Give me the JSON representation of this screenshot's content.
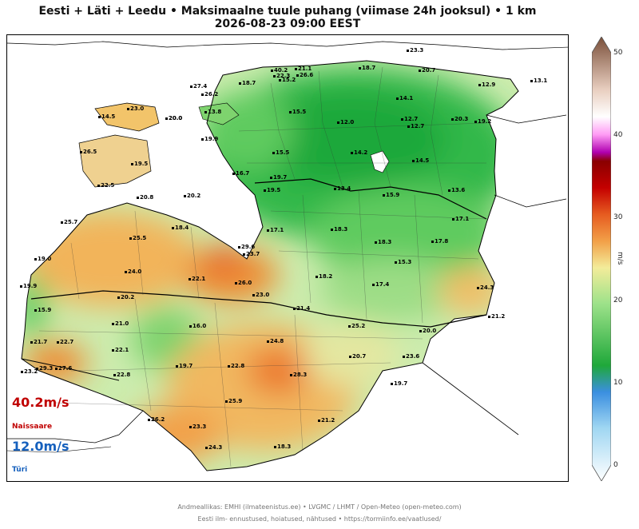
{
  "title": {
    "line1": "Eesti + Läti + Leedu  •  Maksimaalne tuule puhang (viimase 24h jooksul)  •  1 km",
    "line2": "2026-08-23  09:00 EEST"
  },
  "extremes": {
    "max_value": "40.2m/s",
    "max_station": "Naissaare",
    "max_color": "#c00000",
    "min_value": "12.0m/s",
    "min_station": "Türi",
    "min_color": "#1560bd"
  },
  "colorbar": {
    "unit": "m/s",
    "ticks": [
      "50",
      "40",
      "30",
      "20",
      "10",
      "0"
    ],
    "range": [
      0,
      50
    ]
  },
  "stations": [
    {
      "value": "40.2",
      "v": 40.2
    },
    {
      "value": "21.1",
      "v": 21.1
    },
    {
      "value": "18.7",
      "v": 18.7
    },
    {
      "value": "23.3",
      "v": 23.3
    },
    {
      "value": "22.3",
      "v": 22.3
    },
    {
      "value": "26.6",
      "v": 26.6
    },
    {
      "value": "18.7",
      "v": 18.7
    },
    {
      "value": "15.2",
      "v": 15.2
    },
    {
      "value": "20.7",
      "v": 20.7
    },
    {
      "value": "27.4",
      "v": 27.4
    },
    {
      "value": "12.9",
      "v": 12.9
    },
    {
      "value": "13.1",
      "v": 13.1
    },
    {
      "value": "26.2",
      "v": 26.2
    },
    {
      "value": "14.1",
      "v": 14.1
    },
    {
      "value": "23.0",
      "v": 23.0
    },
    {
      "value": "14.5",
      "v": 14.5
    },
    {
      "value": "20.0",
      "v": 20.0
    },
    {
      "value": "13.8",
      "v": 13.8
    },
    {
      "value": "15.5",
      "v": 15.5
    },
    {
      "value": "20.0",
      "v": 20.0
    },
    {
      "value": "12.0",
      "v": 12.0
    },
    {
      "value": "12.7",
      "v": 12.7
    },
    {
      "value": "12.7",
      "v": 12.7
    },
    {
      "value": "20.3",
      "v": 20.3
    },
    {
      "value": "19.2",
      "v": 19.2
    },
    {
      "value": "19.9",
      "v": 19.9
    },
    {
      "value": "26.5",
      "v": 26.5
    },
    {
      "value": "15.5",
      "v": 15.5
    },
    {
      "value": "14.2",
      "v": 14.2
    },
    {
      "value": "14.5",
      "v": 14.5
    },
    {
      "value": "19.5",
      "v": 19.5
    },
    {
      "value": "16.7",
      "v": 16.7
    },
    {
      "value": "19.7",
      "v": 19.7
    },
    {
      "value": "22.5",
      "v": 22.5
    },
    {
      "value": "19.5",
      "v": 19.5
    },
    {
      "value": "13.4",
      "v": 13.4
    },
    {
      "value": "15.9",
      "v": 15.9
    },
    {
      "value": "13.6",
      "v": 13.6
    },
    {
      "value": "20.8",
      "v": 20.8
    },
    {
      "value": "20.2",
      "v": 20.2
    },
    {
      "value": "17.1",
      "v": 17.1
    },
    {
      "value": "25.7",
      "v": 25.7
    },
    {
      "value": "18.4",
      "v": 18.4
    },
    {
      "value": "17.1",
      "v": 17.1
    },
    {
      "value": "18.3",
      "v": 18.3
    },
    {
      "value": "25.5",
      "v": 25.5
    },
    {
      "value": "18.3",
      "v": 18.3
    },
    {
      "value": "17.8",
      "v": 17.8
    },
    {
      "value": "29.6",
      "v": 29.6
    },
    {
      "value": "23.7",
      "v": 23.7
    },
    {
      "value": "19.0",
      "v": 19.0
    },
    {
      "value": "15.3",
      "v": 15.3
    },
    {
      "value": "24.0",
      "v": 24.0
    },
    {
      "value": "22.1",
      "v": 22.1
    },
    {
      "value": "18.2",
      "v": 18.2
    },
    {
      "value": "26.0",
      "v": 26.0
    },
    {
      "value": "17.4",
      "v": 17.4
    },
    {
      "value": "24.3",
      "v": 24.3
    },
    {
      "value": "19.9",
      "v": 19.9
    },
    {
      "value": "23.0",
      "v": 23.0
    },
    {
      "value": "20.2",
      "v": 20.2
    },
    {
      "value": "21.4",
      "v": 21.4
    },
    {
      "value": "15.9",
      "v": 15.9
    },
    {
      "value": "21.2",
      "v": 21.2
    },
    {
      "value": "21.0",
      "v": 21.0
    },
    {
      "value": "16.0",
      "v": 16.0
    },
    {
      "value": "25.2",
      "v": 25.2
    },
    {
      "value": "20.0",
      "v": 20.0
    },
    {
      "value": "21.7",
      "v": 21.7
    },
    {
      "value": "22.7",
      "v": 22.7
    },
    {
      "value": "24.8",
      "v": 24.8
    },
    {
      "value": "22.1",
      "v": 22.1
    },
    {
      "value": "20.7",
      "v": 20.7
    },
    {
      "value": "23.6",
      "v": 23.6
    },
    {
      "value": "19.7",
      "v": 19.7
    },
    {
      "value": "22.8",
      "v": 22.8
    },
    {
      "value": "23.2",
      "v": 23.2
    },
    {
      "value": "29.3",
      "v": 29.3
    },
    {
      "value": "27.6",
      "v": 27.6
    },
    {
      "value": "28.3",
      "v": 28.3
    },
    {
      "value": "22.8",
      "v": 22.8
    },
    {
      "value": "19.7",
      "v": 19.7
    },
    {
      "value": "25.9",
      "v": 25.9
    },
    {
      "value": "21.2",
      "v": 21.2
    },
    {
      "value": "26.2",
      "v": 26.2
    },
    {
      "value": "23.3",
      "v": 23.3
    },
    {
      "value": "18.3",
      "v": 18.3
    },
    {
      "value": "24.3",
      "v": 24.3
    }
  ],
  "footer": {
    "line1": "Andmeallikas: EMHI (ilmateenistus.ee)  •  LVGMC / LHMT / Open-Meteo (open-meteo.com)",
    "line2": "Eesti ilm- ennustused, hoiatused, nähtused  •  https://tormiinfo.ee/vaatlused/"
  }
}
